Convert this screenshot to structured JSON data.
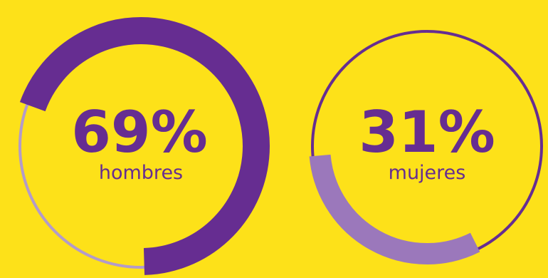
{
  "chart_data": {
    "type": "pie",
    "charts": [
      {
        "value": 69,
        "percent_text": "69%",
        "label": "hombres",
        "arc_color": "#662d91",
        "track_color": "#b39bc9",
        "text_color": "#662d91"
      },
      {
        "value": 31,
        "percent_text": "31%",
        "label": "mujeres",
        "arc_color": "#9b78bb",
        "track_color": "#662d91",
        "text_color": "#662d91"
      }
    ]
  },
  "colors": {
    "background": "#fde119",
    "primary_purple": "#662d91",
    "light_purple": "#9b78bb"
  }
}
